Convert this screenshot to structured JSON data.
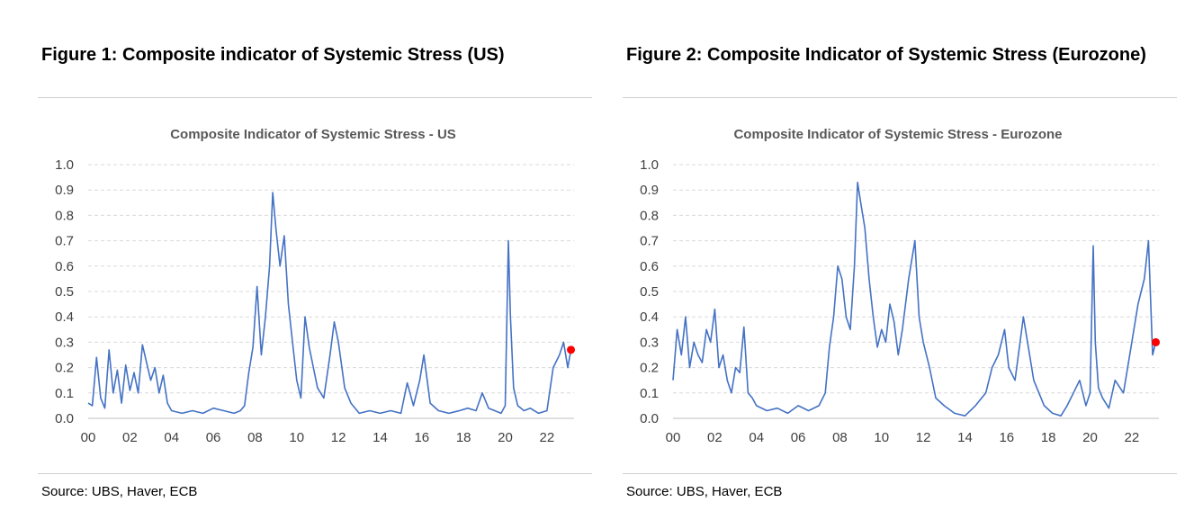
{
  "source_label": "Source: UBS, Haver, ECB",
  "figures": [
    {
      "heading": "Figure 1: Composite indicator of Systemic Stress (US)",
      "source": "Source: UBS, Haver, ECB"
    },
    {
      "heading": "Figure 2: Composite Indicator of Systemic Stress (Eurozone)",
      "source": "Source: UBS, Haver, ECB"
    }
  ],
  "chart_data": [
    {
      "type": "line",
      "title": "Composite Indicator of Systemic Stress - US",
      "xlabel": "",
      "ylabel": "",
      "xlim": [
        2000,
        2023.3
      ],
      "ylim": [
        0,
        1.0
      ],
      "yticks": [
        "0.0",
        "0.1",
        "0.2",
        "0.3",
        "0.4",
        "0.5",
        "0.6",
        "0.7",
        "0.8",
        "0.9",
        "1.0"
      ],
      "xticks": [
        "00",
        "02",
        "04",
        "06",
        "08",
        "10",
        "12",
        "14",
        "16",
        "18",
        "20",
        "22"
      ],
      "grid": true,
      "legend": "none",
      "color": "#4472c4",
      "last_point_color": "#ff0000",
      "series": [
        {
          "x": [
            2000.0,
            2000.2,
            2000.4,
            2000.6,
            2000.8,
            2001.0,
            2001.2,
            2001.4,
            2001.6,
            2001.8,
            2002.0,
            2002.2,
            2002.4,
            2002.6,
            2002.8,
            2003.0,
            2003.2,
            2003.4,
            2003.6,
            2003.8,
            2004.0,
            2004.5,
            2005.0,
            2005.5,
            2006.0,
            2006.5,
            2007.0,
            2007.3,
            2007.5,
            2007.7,
            2007.9,
            2008.1,
            2008.3,
            2008.5,
            2008.7,
            2008.85,
            2009.0,
            2009.2,
            2009.4,
            2009.6,
            2009.8,
            2010.0,
            2010.2,
            2010.4,
            2010.6,
            2010.8,
            2011.0,
            2011.3,
            2011.6,
            2011.8,
            2012.0,
            2012.3,
            2012.6,
            2013.0,
            2013.5,
            2014.0,
            2014.5,
            2015.0,
            2015.3,
            2015.6,
            2015.9,
            2016.1,
            2016.4,
            2016.8,
            2017.3,
            2017.8,
            2018.2,
            2018.6,
            2018.9,
            2019.2,
            2019.5,
            2019.8,
            2020.0,
            2020.15,
            2020.25,
            2020.4,
            2020.6,
            2020.9,
            2021.2,
            2021.6,
            2022.0,
            2022.3,
            2022.6,
            2022.8,
            2023.0,
            2023.15
          ],
          "y": [
            0.06,
            0.05,
            0.24,
            0.08,
            0.04,
            0.27,
            0.1,
            0.19,
            0.06,
            0.21,
            0.11,
            0.18,
            0.1,
            0.29,
            0.22,
            0.15,
            0.2,
            0.1,
            0.17,
            0.06,
            0.03,
            0.02,
            0.03,
            0.02,
            0.04,
            0.03,
            0.02,
            0.03,
            0.05,
            0.18,
            0.28,
            0.52,
            0.25,
            0.4,
            0.6,
            0.89,
            0.75,
            0.6,
            0.72,
            0.45,
            0.3,
            0.15,
            0.08,
            0.4,
            0.28,
            0.2,
            0.12,
            0.08,
            0.25,
            0.38,
            0.3,
            0.12,
            0.06,
            0.02,
            0.03,
            0.02,
            0.03,
            0.02,
            0.14,
            0.05,
            0.15,
            0.25,
            0.06,
            0.03,
            0.02,
            0.03,
            0.04,
            0.03,
            0.1,
            0.04,
            0.03,
            0.02,
            0.05,
            0.7,
            0.4,
            0.12,
            0.05,
            0.03,
            0.04,
            0.02,
            0.03,
            0.2,
            0.25,
            0.3,
            0.2,
            0.27
          ]
        }
      ]
    },
    {
      "type": "line",
      "title": "Composite Indicator of Systemic Stress - Eurozone",
      "xlabel": "",
      "ylabel": "",
      "xlim": [
        2000,
        2023.3
      ],
      "ylim": [
        0,
        1.0
      ],
      "yticks": [
        "0.0",
        "0.1",
        "0.2",
        "0.3",
        "0.4",
        "0.5",
        "0.6",
        "0.7",
        "0.8",
        "0.9",
        "1.0"
      ],
      "xticks": [
        "00",
        "02",
        "04",
        "06",
        "08",
        "10",
        "12",
        "14",
        "16",
        "18",
        "20",
        "22"
      ],
      "grid": true,
      "legend": "none",
      "color": "#4472c4",
      "last_point_color": "#ff0000",
      "series": [
        {
          "x": [
            2000.0,
            2000.2,
            2000.4,
            2000.6,
            2000.8,
            2001.0,
            2001.2,
            2001.4,
            2001.6,
            2001.8,
            2002.0,
            2002.2,
            2002.4,
            2002.6,
            2002.8,
            2003.0,
            2003.2,
            2003.4,
            2003.6,
            2003.8,
            2004.0,
            2004.5,
            2005.0,
            2005.5,
            2006.0,
            2006.5,
            2007.0,
            2007.3,
            2007.5,
            2007.7,
            2007.9,
            2008.1,
            2008.3,
            2008.5,
            2008.7,
            2008.85,
            2009.0,
            2009.2,
            2009.4,
            2009.6,
            2009.8,
            2010.0,
            2010.2,
            2010.4,
            2010.6,
            2010.8,
            2011.0,
            2011.3,
            2011.6,
            2011.8,
            2012.0,
            2012.3,
            2012.6,
            2013.0,
            2013.5,
            2014.0,
            2014.5,
            2015.0,
            2015.3,
            2015.6,
            2015.9,
            2016.1,
            2016.4,
            2016.8,
            2017.3,
            2017.8,
            2018.2,
            2018.6,
            2018.9,
            2019.2,
            2019.5,
            2019.8,
            2020.0,
            2020.15,
            2020.25,
            2020.4,
            2020.6,
            2020.9,
            2021.2,
            2021.6,
            2022.0,
            2022.3,
            2022.6,
            2022.8,
            2023.0,
            2023.15
          ],
          "y": [
            0.15,
            0.35,
            0.25,
            0.4,
            0.2,
            0.3,
            0.25,
            0.22,
            0.35,
            0.3,
            0.43,
            0.2,
            0.25,
            0.15,
            0.1,
            0.2,
            0.18,
            0.36,
            0.1,
            0.08,
            0.05,
            0.03,
            0.04,
            0.02,
            0.05,
            0.03,
            0.05,
            0.1,
            0.28,
            0.4,
            0.6,
            0.55,
            0.4,
            0.35,
            0.6,
            0.93,
            0.85,
            0.75,
            0.55,
            0.4,
            0.28,
            0.35,
            0.3,
            0.45,
            0.38,
            0.25,
            0.35,
            0.55,
            0.7,
            0.4,
            0.3,
            0.2,
            0.08,
            0.05,
            0.02,
            0.01,
            0.05,
            0.1,
            0.2,
            0.25,
            0.35,
            0.2,
            0.15,
            0.4,
            0.15,
            0.05,
            0.02,
            0.01,
            0.05,
            0.1,
            0.15,
            0.05,
            0.1,
            0.68,
            0.3,
            0.12,
            0.08,
            0.04,
            0.15,
            0.1,
            0.3,
            0.45,
            0.55,
            0.7,
            0.25,
            0.3
          ]
        }
      ]
    }
  ]
}
